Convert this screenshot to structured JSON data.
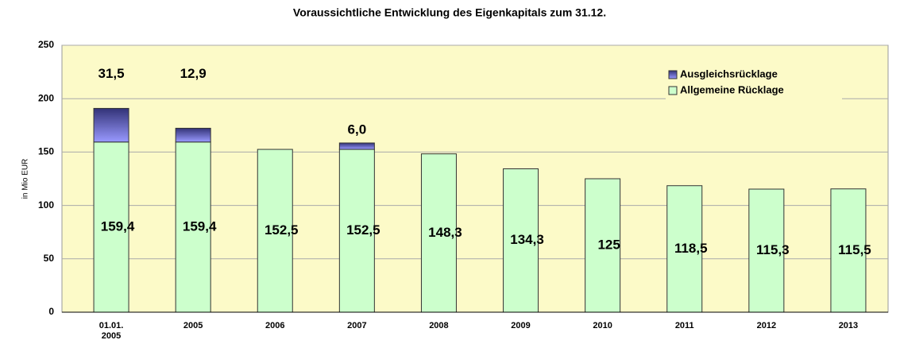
{
  "chart_data": {
    "type": "stacked_bar",
    "title": "Voraussichtliche Entwicklung des Eigenkapitals zum 31.12.",
    "y_label": "in Mio EUR",
    "categories": [
      "01.01.\n2005",
      "2005",
      "2006",
      "2007",
      "2008",
      "2009",
      "2010",
      "2011",
      "2012",
      "2013"
    ],
    "series": [
      {
        "name": "Allgemeine Rücklage",
        "color": "#ccffcc",
        "values": [
          159.4,
          159.4,
          152.5,
          152.5,
          148.3,
          134.3,
          125,
          118.5,
          115.3,
          115.5
        ],
        "value_labels": [
          "159,4",
          "159,4",
          "152,5",
          "152,5",
          "148,3",
          "134,3",
          "125",
          "118,5",
          "115,3",
          "115,5"
        ]
      },
      {
        "name": "Ausgleichsrücklage",
        "color": "#7777dd",
        "values": [
          31.5,
          12.9,
          null,
          6.0,
          null,
          null,
          null,
          null,
          null,
          null
        ],
        "value_labels": [
          "31,5",
          "12,9",
          null,
          "6,0",
          null,
          null,
          null,
          null,
          null,
          null
        ]
      }
    ],
    "ylim": [
      0,
      250
    ],
    "yticks": [
      0,
      50,
      100,
      150,
      200,
      250
    ],
    "grid": true,
    "legend": "top-right"
  }
}
